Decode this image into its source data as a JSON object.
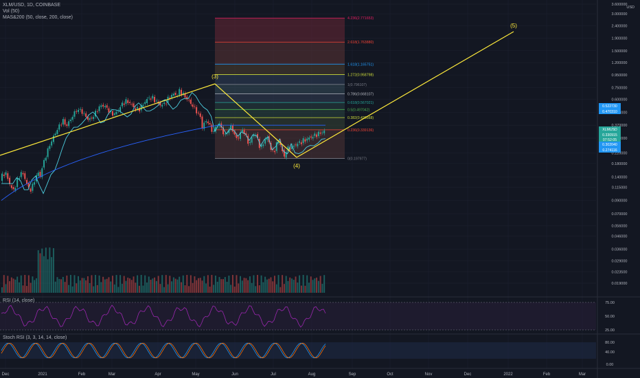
{
  "header": {
    "symbol": "XLM/USD, 1D, COINBASE",
    "vol_label": "Vol (50)",
    "ma_label": "MAS&200 (50, close, 200, close)"
  },
  "panes": {
    "rsi_label": "RSI (14, close)",
    "stoch_label": "Stoch RSI (3, 3, 14, 14, close)"
  },
  "chart_data": {
    "type": "candlestick",
    "symbol": "XLMUSD",
    "currency": "USD",
    "price_scale": "log",
    "price_axis_ticks": [
      "3.600000",
      "3.000000",
      "2.400000",
      "1.900000",
      "1.500000",
      "1.200000",
      "0.950000",
      "0.750000",
      "0.600000",
      "0.470000",
      "0.370000",
      "0.290000",
      "0.220000",
      "0.180000",
      "0.140000",
      "0.115000",
      "0.090000",
      "0.070000",
      "0.056000",
      "0.046000",
      "0.036000",
      "0.029000",
      "0.023500",
      "0.019000"
    ],
    "time_axis_ticks": [
      "Dec",
      "2021",
      "Feb",
      "Mar",
      "Apr",
      "May",
      "Jun",
      "Jul",
      "Aug",
      "Sep",
      "Oct",
      "Nov",
      "Dec",
      "2022",
      "Feb",
      "Mar"
    ],
    "price_labels": [
      {
        "text": "0.522730",
        "color": "#2196f3"
      },
      {
        "text": "0.470310",
        "color": "#2196f3"
      },
      {
        "text": "XLMUSD",
        "color": "#26a69a"
      },
      {
        "text": "0.330915",
        "color": "#26a69a"
      },
      {
        "text": "07:52:05",
        "color": "#26a69a"
      },
      {
        "text": "0.302040",
        "color": "#2196f3"
      },
      {
        "text": "0.274116",
        "color": "#2196f3"
      }
    ],
    "fib_levels": [
      {
        "ratio": "4.236",
        "price": "2.771653",
        "label": "4.236(2.771653)",
        "color": "#e91e63"
      },
      {
        "ratio": "2.618",
        "price": "1.763880",
        "label": "2.618(1.763880)",
        "color": "#f44336"
      },
      {
        "ratio": "1.618",
        "price": "1.165751",
        "label": "1.618(1.165751)",
        "color": "#2196f3"
      },
      {
        "ratio": "1.272",
        "price": "0.958798",
        "label": "1.272(0.958798)",
        "color": "#cddc39"
      },
      {
        "ratio": "1",
        "price": "0.796107",
        "label": "1(0.796107)",
        "color": "#787b86"
      },
      {
        "ratio": "0.786",
        "price": "0.668107",
        "label": "0.786(0.668107)",
        "color": "#b2b5be"
      },
      {
        "ratio": "0.618",
        "price": "0.567021",
        "label": "0.618(0.567021)",
        "color": "#26a69a"
      },
      {
        "ratio": "0.5",
        "price": "0.497042",
        "label": "0.5(0.497042)",
        "color": "#4caf50"
      },
      {
        "ratio": "0.382",
        "price": "0.426568",
        "label": "0.382(0.426568)",
        "color": "#cddc39"
      },
      {
        "ratio": "0.236",
        "price": "0.339136",
        "label": "0.236(0.339136)",
        "color": "#f44336"
      },
      {
        "ratio": "0",
        "price": "0.197977",
        "label": "0(0.197977)",
        "color": "#787b86"
      }
    ],
    "wave_labels": [
      "(3)",
      "(4)",
      "(5)"
    ],
    "rsi_axis": [
      "75.00",
      "50.00",
      "25.00"
    ],
    "stoch_axis": [
      "80.00",
      "40.00",
      "0.00"
    ],
    "colors": {
      "up": "#26a69a",
      "down": "#ef5350",
      "ma50": "#4dd0e1",
      "ma200": "#2962ff",
      "rsi": "#9c27b0",
      "stoch_k": "#2196f3",
      "stoch_d": "#ff6d00",
      "wave": "#ffeb3b"
    }
  }
}
